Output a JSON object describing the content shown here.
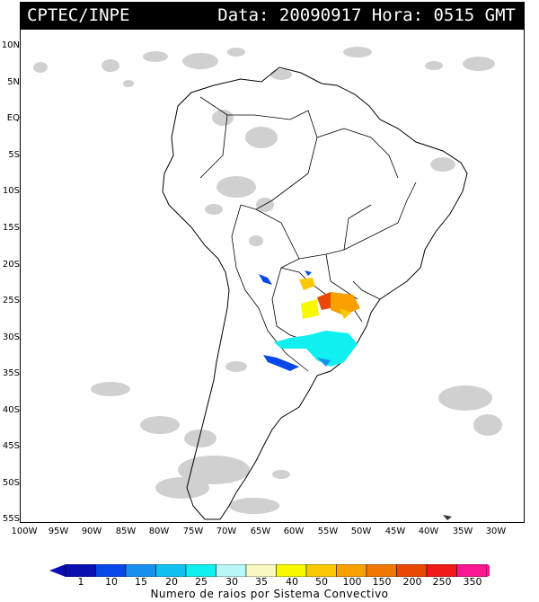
{
  "header": {
    "source": "CPTEC/INPE",
    "datetime": "Data: 20090917 Hora: 0515 GMT"
  },
  "axes": {
    "lat_labels": [
      "10N",
      "5N",
      "EQ",
      "5S",
      "10S",
      "15S",
      "20S",
      "25S",
      "30S",
      "35S",
      "40S",
      "45S",
      "50S",
      "55S"
    ],
    "lon_labels": [
      "100W",
      "95W",
      "90W",
      "85W",
      "80W",
      "75W",
      "70W",
      "65W",
      "60W",
      "55W",
      "50W",
      "45W",
      "40W",
      "35W",
      "30W"
    ]
  },
  "legend": {
    "title": "Numero de raios por Sistema Convectivo",
    "levels": [
      "1",
      "10",
      "15",
      "20",
      "25",
      "30",
      "35",
      "40",
      "50",
      "100",
      "150",
      "200",
      "250",
      "350"
    ],
    "colors": [
      "#0a10b0",
      "#0848e8",
      "#1890f0",
      "#10c0f0",
      "#10f0f0",
      "#b8f8f8",
      "#f8f8c0",
      "#f8f800",
      "#f8c800",
      "#f8a000",
      "#f07800",
      "#e84800",
      "#f01818",
      "#f81890"
    ]
  }
}
